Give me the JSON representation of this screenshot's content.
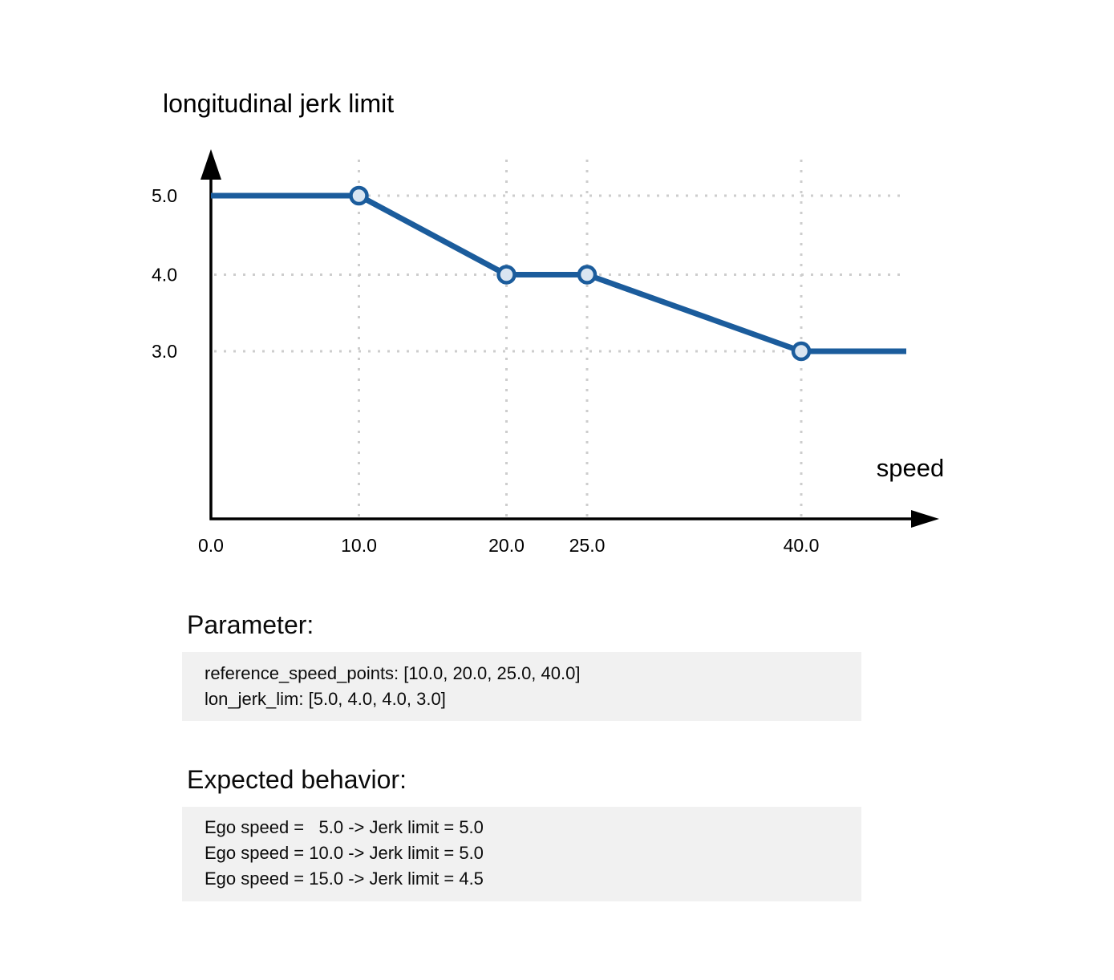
{
  "chart_data": {
    "type": "line",
    "title": "longitudinal jerk limit",
    "xlabel": "speed",
    "ylabel": "",
    "x_tick_labels": [
      "0.0",
      "10.0",
      "20.0",
      "25.0",
      "40.0"
    ],
    "x_tick_values": [
      0,
      10,
      20,
      25,
      40
    ],
    "y_tick_labels": [
      "5.0",
      "4.0",
      "3.0"
    ],
    "y_tick_values": [
      5,
      4,
      3
    ],
    "xlim": [
      0,
      47
    ],
    "ylim": [
      2.2,
      5.6
    ],
    "grid": true,
    "legend_position": "none",
    "series": [
      {
        "name": "lon_jerk_lim",
        "points": [
          [
            0,
            5.0
          ],
          [
            10,
            5.0
          ],
          [
            20,
            4.0
          ],
          [
            25,
            4.0
          ],
          [
            40,
            3.0
          ],
          [
            47,
            3.0
          ]
        ],
        "marker_points": [
          [
            10,
            5.0
          ],
          [
            20,
            4.0
          ],
          [
            25,
            4.0
          ],
          [
            40,
            3.0
          ]
        ],
        "color": "#1b5c9c",
        "marker_fill": "#d9e5f1"
      }
    ]
  },
  "colors": {
    "line": "#1b5c9c",
    "marker_fill": "#d9e5f1",
    "grid": "#cdcdcd",
    "axis": "#000000",
    "box_bg": "#f1f1f1",
    "text": "#0b0b0b"
  },
  "sections": {
    "parameter": {
      "heading": "Parameter:",
      "lines": [
        "reference_speed_points: [10.0, 20.0, 25.0, 40.0]",
        "lon_jerk_lim: [5.0, 4.0, 4.0, 3.0]"
      ]
    },
    "expected": {
      "heading": "Expected behavior:",
      "lines": [
        "Ego speed =   5.0 -> Jerk limit = 5.0",
        "Ego speed = 10.0 -> Jerk limit = 5.0",
        "Ego speed = 15.0 -> Jerk limit = 4.5"
      ]
    }
  }
}
